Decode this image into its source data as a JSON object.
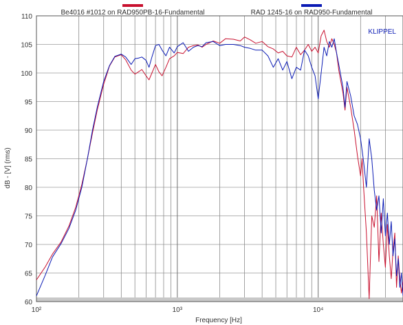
{
  "chart_data": {
    "type": "line",
    "xlabel": "Frequency [Hz]",
    "ylabel": "dB - [V] (rms)",
    "x_scale": "log",
    "xlim": [
      100,
      40000
    ],
    "ylim": [
      60,
      110
    ],
    "x_ticks": [
      {
        "value": 100,
        "label": "10²"
      },
      {
        "value": 1000,
        "label": "10³"
      },
      {
        "value": 10000,
        "label": "10⁴"
      }
    ],
    "y_ticks": [
      60,
      65,
      70,
      75,
      80,
      85,
      90,
      95,
      100,
      105,
      110
    ],
    "grid": true,
    "legend_position": "top",
    "brand": "KLIPPEL",
    "series": [
      {
        "name": "Be4016 #1012 on RAD950PB-16-Fundamental",
        "color": "#c8102e",
        "x": [
          100,
          115,
          130,
          150,
          170,
          190,
          210,
          230,
          250,
          270,
          300,
          330,
          360,
          400,
          430,
          470,
          500,
          530,
          560,
          600,
          630,
          660,
          700,
          740,
          780,
          830,
          880,
          950,
          1000,
          1100,
          1200,
          1300,
          1400,
          1500,
          1600,
          1800,
          2000,
          2200,
          2500,
          2800,
          3000,
          3300,
          3600,
          4000,
          4400,
          4800,
          5200,
          5600,
          6000,
          6500,
          7000,
          7500,
          8000,
          8500,
          9000,
          9500,
          10000,
          10500,
          11000,
          11500,
          12000,
          12500,
          13000,
          13500,
          14000,
          15000,
          15500,
          16000,
          17000,
          18000,
          19000,
          20000,
          20500,
          21000,
          22000,
          23000,
          24000,
          25000,
          26000,
          27000,
          28000,
          29000,
          30000,
          31000,
          32000,
          33000,
          34000,
          35000,
          36000,
          37000,
          38000,
          39000,
          40000
        ],
        "y": [
          63.8,
          66.0,
          68.3,
          70.5,
          73.2,
          76.5,
          80.5,
          85.0,
          89.5,
          93.5,
          98.0,
          101.2,
          102.8,
          103.2,
          102.3,
          100.5,
          99.8,
          100.2,
          100.6,
          99.5,
          98.8,
          100.0,
          101.5,
          100.2,
          99.5,
          101.0,
          102.5,
          103.0,
          103.6,
          103.4,
          104.5,
          104.8,
          104.9,
          104.5,
          105.0,
          105.6,
          105.2,
          106.0,
          105.9,
          105.6,
          106.3,
          105.8,
          105.2,
          105.5,
          104.6,
          104.2,
          103.5,
          103.8,
          103.0,
          102.8,
          104.5,
          103.2,
          104.0,
          105.0,
          103.8,
          104.5,
          103.5,
          106.5,
          107.5,
          105.5,
          104.5,
          106.0,
          105.0,
          103.5,
          100.5,
          96.5,
          93.5,
          97.5,
          94.0,
          90.0,
          85.5,
          82.0,
          85.0,
          80.0,
          72.0,
          60.5,
          75.0,
          73.0,
          78.5,
          67.0,
          75.5,
          70.0,
          66.0,
          73.5,
          68.0,
          64.0,
          69.0,
          72.0,
          62.5,
          68.0,
          64.0,
          61.5,
          63.5
        ]
      },
      {
        "name": "RAD 1245-16 on RAD950-Fundamental",
        "color": "#0a1ab4",
        "x": [
          100,
          115,
          130,
          150,
          170,
          190,
          210,
          230,
          250,
          270,
          300,
          330,
          360,
          400,
          430,
          470,
          500,
          530,
          560,
          600,
          630,
          660,
          700,
          740,
          780,
          830,
          880,
          950,
          1000,
          1100,
          1200,
          1300,
          1400,
          1500,
          1600,
          1800,
          2000,
          2200,
          2500,
          2800,
          3000,
          3300,
          3600,
          4000,
          4400,
          4800,
          5200,
          5600,
          6000,
          6500,
          7000,
          7500,
          8000,
          8500,
          9000,
          9500,
          10000,
          10500,
          11000,
          11500,
          12000,
          12500,
          13000,
          13500,
          14000,
          15000,
          15500,
          16000,
          17000,
          18000,
          19000,
          20000,
          20500,
          21000,
          22000,
          23000,
          24000,
          25000,
          26000,
          27000,
          28000,
          29000,
          30000,
          31000,
          32000,
          33000,
          34000,
          35000,
          36000,
          37000,
          38000,
          39000,
          40000
        ],
        "y": [
          61.0,
          64.5,
          67.8,
          70.2,
          72.8,
          76.0,
          80.0,
          85.0,
          90.0,
          94.0,
          98.5,
          101.3,
          102.9,
          103.3,
          102.8,
          101.5,
          102.5,
          102.6,
          102.8,
          102.2,
          101.0,
          102.8,
          104.8,
          105.0,
          104.0,
          103.0,
          104.5,
          103.5,
          104.6,
          105.3,
          103.8,
          104.5,
          104.8,
          104.6,
          105.3,
          105.5,
          104.8,
          105.0,
          105.0,
          104.8,
          104.5,
          104.3,
          104.0,
          104.0,
          103.0,
          101.0,
          102.5,
          100.5,
          102.0,
          99.0,
          101.0,
          100.5,
          104.0,
          103.0,
          101.0,
          99.5,
          95.5,
          100.0,
          104.5,
          103.0,
          105.5,
          104.5,
          106.0,
          103.5,
          101.5,
          97.5,
          94.0,
          98.5,
          96.0,
          92.5,
          91.0,
          88.5,
          86.5,
          84.5,
          80.0,
          88.5,
          85.0,
          79.5,
          76.0,
          78.5,
          72.0,
          78.0,
          71.5,
          75.5,
          70.0,
          74.0,
          68.0,
          71.0,
          64.5,
          67.5,
          62.5,
          65.0,
          61.0
        ]
      }
    ]
  }
}
